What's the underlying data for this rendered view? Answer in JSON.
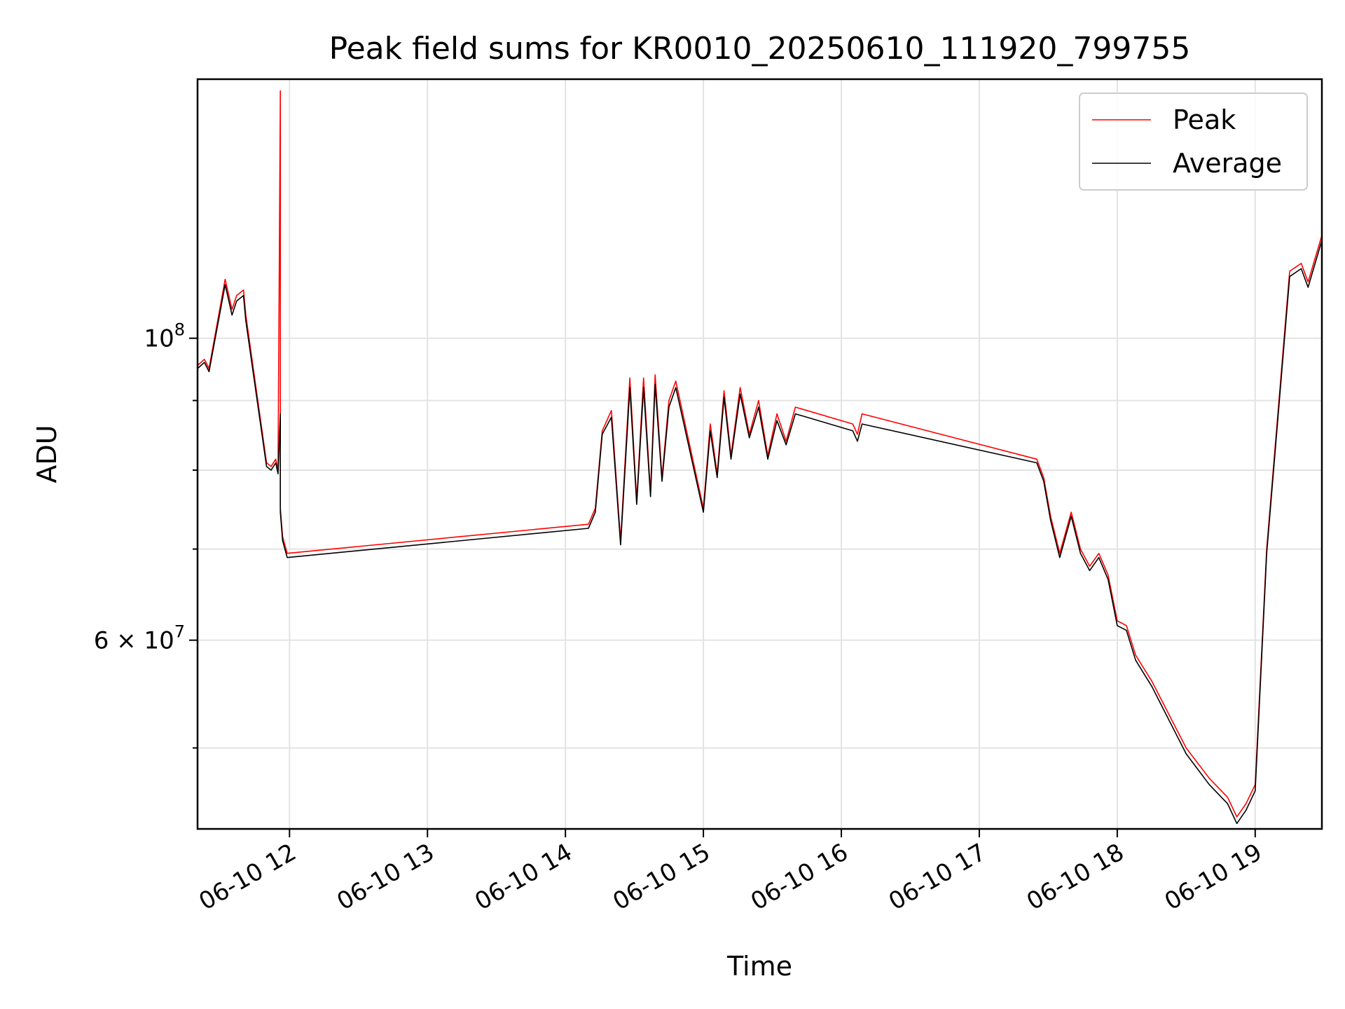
{
  "chart_data": {
    "type": "line",
    "title": "Peak field sums for KR0010_20250610_111920_799755",
    "xlabel": "Time",
    "ylabel": "ADU",
    "y_scale": "log",
    "ylim": [
      43600000,
      155000000
    ],
    "xlim": [
      "2025-06-10 11:20",
      "2025-06-10 19:29"
    ],
    "x_tick_labels": [
      "06-10 12",
      "06-10 13",
      "06-10 14",
      "06-10 15",
      "06-10 16",
      "06-10 17",
      "06-10 18",
      "06-10 19"
    ],
    "x_tick_times": [
      "2025-06-10 12:00",
      "2025-06-10 13:00",
      "2025-06-10 14:00",
      "2025-06-10 15:00",
      "2025-06-10 16:00",
      "2025-06-10 17:00",
      "2025-06-10 18:00",
      "2025-06-10 19:00"
    ],
    "y_tick_labels": [
      {
        "value": 100000000,
        "base": "10",
        "exp": "8"
      },
      {
        "value": 60000000,
        "base": "6 × 10",
        "exp": "7"
      }
    ],
    "y_minor_ticks": [
      50000000,
      70000000,
      80000000,
      90000000
    ],
    "grid": true,
    "legend_position": "top-right",
    "series": [
      {
        "name": "Peak",
        "color": "#ff0000",
        "x": [
          "2025-06-10 11:20",
          "2025-06-10 11:23",
          "2025-06-10 11:25",
          "2025-06-10 11:32",
          "2025-06-10 11:35",
          "2025-06-10 11:37",
          "2025-06-10 11:40",
          "2025-06-10 11:41",
          "2025-06-10 11:50",
          "2025-06-10 11:52",
          "2025-06-10 11:54",
          "2025-06-10 11:55",
          "2025-06-10 11:56",
          "2025-06-10 11:56",
          "2025-06-10 11:57",
          "2025-06-10 11:59",
          "2025-06-10 14:10",
          "2025-06-10 14:13",
          "2025-06-10 14:16",
          "2025-06-10 14:20",
          "2025-06-10 14:24",
          "2025-06-10 14:28",
          "2025-06-10 14:31",
          "2025-06-10 14:34",
          "2025-06-10 14:37",
          "2025-06-10 14:39",
          "2025-06-10 14:42",
          "2025-06-10 14:45",
          "2025-06-10 14:48",
          "2025-06-10 15:00",
          "2025-06-10 15:03",
          "2025-06-10 15:06",
          "2025-06-10 15:09",
          "2025-06-10 15:12",
          "2025-06-10 15:16",
          "2025-06-10 15:20",
          "2025-06-10 15:24",
          "2025-06-10 15:28",
          "2025-06-10 15:32",
          "2025-06-10 15:36",
          "2025-06-10 15:40",
          "2025-06-10 16:05",
          "2025-06-10 16:07",
          "2025-06-10 16:09",
          "2025-06-10 17:25",
          "2025-06-10 17:28",
          "2025-06-10 17:31",
          "2025-06-10 17:35",
          "2025-06-10 17:40",
          "2025-06-10 17:44",
          "2025-06-10 17:48",
          "2025-06-10 17:52",
          "2025-06-10 17:56",
          "2025-06-10 18:00",
          "2025-06-10 18:04",
          "2025-06-10 18:08",
          "2025-06-10 18:15",
          "2025-06-10 18:30",
          "2025-06-10 18:40",
          "2025-06-10 18:48",
          "2025-06-10 18:52",
          "2025-06-10 18:56",
          "2025-06-10 19:00",
          "2025-06-10 19:05",
          "2025-06-10 19:15",
          "2025-06-10 19:20",
          "2025-06-10 19:23",
          "2025-06-10 19:29"
        ],
        "y": [
          95500000,
          96500000,
          95000000,
          110500000,
          105000000,
          107500000,
          108500000,
          104000000,
          81000000,
          80500000,
          81500000,
          80000000,
          152000000,
          75000000,
          71500000,
          69500000,
          73000000,
          75000000,
          85500000,
          88500000,
          71000000,
          93500000,
          76000000,
          93500000,
          77000000,
          94000000,
          79000000,
          90000000,
          93000000,
          75000000,
          86500000,
          79500000,
          91500000,
          82000000,
          92000000,
          85000000,
          90000000,
          82000000,
          88000000,
          84000000,
          89000000,
          86500000,
          85000000,
          88000000,
          81500000,
          79000000,
          74000000,
          69500000,
          74500000,
          70000000,
          68000000,
          69500000,
          67000000,
          62000000,
          61500000,
          58500000,
          56000000,
          50000000,
          47500000,
          46000000,
          44500000,
          45500000,
          47000000,
          70000000,
          112000000,
          113500000,
          110000000,
          119000000
        ]
      },
      {
        "name": "Average",
        "color": "#000000",
        "x": [
          "2025-06-10 11:20",
          "2025-06-10 11:23",
          "2025-06-10 11:25",
          "2025-06-10 11:32",
          "2025-06-10 11:35",
          "2025-06-10 11:37",
          "2025-06-10 11:40",
          "2025-06-10 11:41",
          "2025-06-10 11:50",
          "2025-06-10 11:52",
          "2025-06-10 11:54",
          "2025-06-10 11:55",
          "2025-06-10 11:56",
          "2025-06-10 11:56",
          "2025-06-10 11:57",
          "2025-06-10 11:59",
          "2025-06-10 14:10",
          "2025-06-10 14:13",
          "2025-06-10 14:16",
          "2025-06-10 14:20",
          "2025-06-10 14:24",
          "2025-06-10 14:28",
          "2025-06-10 14:31",
          "2025-06-10 14:34",
          "2025-06-10 14:37",
          "2025-06-10 14:39",
          "2025-06-10 14:42",
          "2025-06-10 14:45",
          "2025-06-10 14:48",
          "2025-06-10 15:00",
          "2025-06-10 15:03",
          "2025-06-10 15:06",
          "2025-06-10 15:09",
          "2025-06-10 15:12",
          "2025-06-10 15:16",
          "2025-06-10 15:20",
          "2025-06-10 15:24",
          "2025-06-10 15:28",
          "2025-06-10 15:32",
          "2025-06-10 15:36",
          "2025-06-10 15:40",
          "2025-06-10 16:05",
          "2025-06-10 16:07",
          "2025-06-10 16:09",
          "2025-06-10 17:25",
          "2025-06-10 17:28",
          "2025-06-10 17:31",
          "2025-06-10 17:35",
          "2025-06-10 17:40",
          "2025-06-10 17:44",
          "2025-06-10 17:48",
          "2025-06-10 17:52",
          "2025-06-10 17:56",
          "2025-06-10 18:00",
          "2025-06-10 18:04",
          "2025-06-10 18:08",
          "2025-06-10 18:15",
          "2025-06-10 18:30",
          "2025-06-10 18:40",
          "2025-06-10 18:48",
          "2025-06-10 18:52",
          "2025-06-10 18:56",
          "2025-06-10 19:00",
          "2025-06-10 19:05",
          "2025-06-10 19:15",
          "2025-06-10 19:20",
          "2025-06-10 19:23",
          "2025-06-10 19:29"
        ],
        "y": [
          95000000,
          96000000,
          94500000,
          109500000,
          104000000,
          106500000,
          107500000,
          103000000,
          80500000,
          80000000,
          81000000,
          79500000,
          88000000,
          74500000,
          71000000,
          69000000,
          72500000,
          74500000,
          85000000,
          87500000,
          70500000,
          92000000,
          75500000,
          92000000,
          76500000,
          92500000,
          78500000,
          89000000,
          92000000,
          74500000,
          85500000,
          79000000,
          90500000,
          81500000,
          91000000,
          84500000,
          89000000,
          81500000,
          87000000,
          83500000,
          88000000,
          85500000,
          84000000,
          86500000,
          81000000,
          78500000,
          73500000,
          69000000,
          74000000,
          69500000,
          67500000,
          69000000,
          66500000,
          61500000,
          61000000,
          58000000,
          55500000,
          49500000,
          47000000,
          45500000,
          44000000,
          45000000,
          46500000,
          69500000,
          111000000,
          112500000,
          109000000,
          118000000
        ]
      }
    ]
  }
}
